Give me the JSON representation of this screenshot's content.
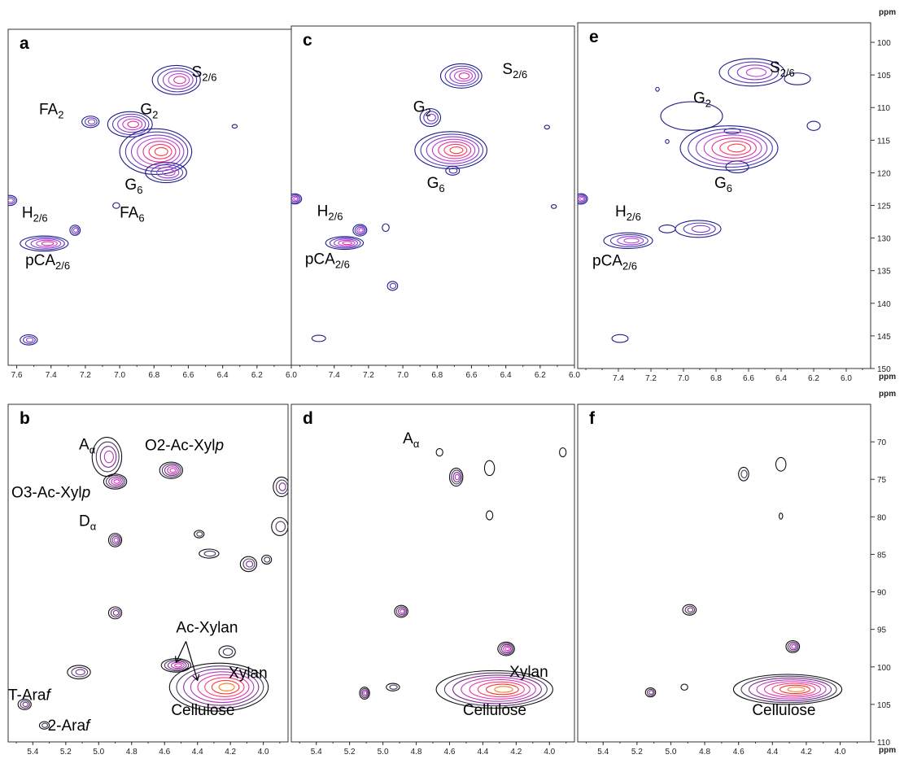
{
  "chart_data": [
    {
      "panel": "a",
      "type": "heatmap",
      "spectrum": "aromatic",
      "xlim": [
        7.65,
        6.0
      ],
      "ylim": [
        150,
        97
      ],
      "x_ticks": [
        "7.6",
        "7.4",
        "7.2",
        "7.0",
        "6.8",
        "6.6",
        "6.4",
        "6.2",
        "6.0"
      ],
      "peaks": [
        {
          "x": 6.67,
          "y": 105.0,
          "w": 0.14,
          "h": 2.3,
          "n": 5,
          "name": "S2/6"
        },
        {
          "x": 7.17,
          "y": 111.6,
          "w": 0.05,
          "h": 0.9,
          "n": 3
        },
        {
          "x": 6.94,
          "y": 112.0,
          "w": 0.13,
          "h": 2.0,
          "n": 5,
          "name": "G2"
        },
        {
          "x": 6.33,
          "y": 112.3,
          "w": 0.015,
          "h": 0.25,
          "n": 1
        },
        {
          "x": 6.79,
          "y": 116.3,
          "w": 0.21,
          "h": 3.6,
          "n": 7
        },
        {
          "x": 6.73,
          "y": 119.6,
          "w": 0.12,
          "h": 1.6,
          "n": 4,
          "name": "G6"
        },
        {
          "x": 7.64,
          "y": 124.0,
          "w": 0.04,
          "h": 0.8,
          "n": 3
        },
        {
          "x": 7.02,
          "y": 124.8,
          "w": 0.02,
          "h": 0.45,
          "n": 1,
          "name": "FA6"
        },
        {
          "x": 7.26,
          "y": 128.7,
          "w": 0.03,
          "h": 0.8,
          "n": 3
        },
        {
          "x": 7.44,
          "y": 130.8,
          "w": 0.14,
          "h": 1.2,
          "n": 5,
          "name": "pCA2/6"
        },
        {
          "x": 7.53,
          "y": 146.0,
          "w": 0.05,
          "h": 0.8,
          "n": 3
        }
      ],
      "labels": [
        {
          "text": "S",
          "sub": "2/6",
          "x": 6.58,
          "y": 104.5
        },
        {
          "text": "FA",
          "sub": "2",
          "x": 7.47,
          "y": 110.4
        },
        {
          "text": "G",
          "sub": "2",
          "x": 6.88,
          "y": 110.4
        },
        {
          "text": "G",
          "sub": "6",
          "x": 6.97,
          "y": 122.3
        },
        {
          "text": "H",
          "sub": "2/6",
          "x": 7.57,
          "y": 126.7
        },
        {
          "text": "FA",
          "sub": "6",
          "x": 7.0,
          "y": 126.7
        },
        {
          "text": "pCA",
          "sub": "2/6",
          "x": 7.55,
          "y": 134.2
        }
      ],
      "panel_label": "a"
    },
    {
      "panel": "c",
      "type": "heatmap",
      "spectrum": "aromatic",
      "xlim": [
        7.65,
        6.0
      ],
      "ylim": [
        150,
        97
      ],
      "x_ticks": [
        "7.4",
        "7.2",
        "7.0",
        "6.8",
        "6.6",
        "6.4",
        "6.2",
        "6.0"
      ],
      "peaks": [
        {
          "x": 6.66,
          "y": 104.8,
          "w": 0.12,
          "h": 1.9,
          "n": 5,
          "name": "S2/6"
        },
        {
          "x": 6.84,
          "y": 111.3,
          "w": 0.06,
          "h": 1.4,
          "n": 3
        },
        {
          "x": 6.16,
          "y": 112.8,
          "w": 0.015,
          "h": 0.3,
          "n": 1
        },
        {
          "x": 6.72,
          "y": 116.4,
          "w": 0.21,
          "h": 2.9,
          "n": 7
        },
        {
          "x": 6.71,
          "y": 119.6,
          "w": 0.04,
          "h": 0.7,
          "n": 2,
          "name": "G6"
        },
        {
          "x": 7.63,
          "y": 124.0,
          "w": 0.04,
          "h": 0.8,
          "n": 4
        },
        {
          "x": 6.12,
          "y": 125.2,
          "w": 0.015,
          "h": 0.3,
          "n": 1
        },
        {
          "x": 7.25,
          "y": 128.9,
          "w": 0.04,
          "h": 0.9,
          "n": 4
        },
        {
          "x": 7.1,
          "y": 128.5,
          "w": 0.02,
          "h": 0.6,
          "n": 1
        },
        {
          "x": 7.34,
          "y": 130.9,
          "w": 0.11,
          "h": 1.0,
          "n": 5,
          "name": "pCA2/6"
        },
        {
          "x": 7.06,
          "y": 137.6,
          "w": 0.03,
          "h": 0.7,
          "n": 2
        },
        {
          "x": 7.49,
          "y": 145.8,
          "w": 0.04,
          "h": 0.5,
          "n": 1
        }
      ],
      "labels": [
        {
          "text": "S",
          "sub": "2/6",
          "x": 6.42,
          "y": 104.5
        },
        {
          "text": "G",
          "sub": "2",
          "x": 6.94,
          "y": 110.4
        },
        {
          "text": "G",
          "sub": "6",
          "x": 6.86,
          "y": 122.3
        },
        {
          "text": "H",
          "sub": "2/6",
          "x": 7.5,
          "y": 126.7
        },
        {
          "text": "pCA",
          "sub": "2/6",
          "x": 7.57,
          "y": 134.2
        }
      ],
      "panel_label": "c"
    },
    {
      "panel": "e",
      "type": "heatmap",
      "spectrum": "aromatic",
      "xlim": [
        7.65,
        5.85
      ],
      "ylim": [
        150,
        97
      ],
      "x_ticks": [
        "7.4",
        "7.2",
        "7.0",
        "6.8",
        "6.6",
        "6.4",
        "6.2",
        "6.0"
      ],
      "y_ticks": [
        "100",
        "105",
        "110",
        "115",
        "120",
        "125",
        "130",
        "135",
        "140",
        "145",
        "150"
      ],
      "y_unit": "ppm",
      "x_unit": "ppm",
      "peaks": [
        {
          "x": 6.58,
          "y": 104.6,
          "w": 0.2,
          "h": 2.1,
          "n": 4,
          "name": "S2/6"
        },
        {
          "x": 6.3,
          "y": 105.6,
          "w": 0.08,
          "h": 0.9,
          "n": 1
        },
        {
          "x": 7.16,
          "y": 107.2,
          "w": 0.01,
          "h": 0.3,
          "n": 1
        },
        {
          "x": 6.95,
          "y": 111.3,
          "w": 0.19,
          "h": 2.2,
          "n": 1,
          "name": "G2"
        },
        {
          "x": 6.7,
          "y": 113.6,
          "w": 0.05,
          "h": 0.4,
          "n": 1
        },
        {
          "x": 6.2,
          "y": 112.8,
          "w": 0.04,
          "h": 0.7,
          "n": 1
        },
        {
          "x": 7.1,
          "y": 115.2,
          "w": 0.01,
          "h": 0.3,
          "n": 1
        },
        {
          "x": 6.72,
          "y": 116.2,
          "w": 0.3,
          "h": 3.4,
          "n": 7
        },
        {
          "x": 6.67,
          "y": 119.1,
          "w": 0.07,
          "h": 0.9,
          "n": 1,
          "name": "G6"
        },
        {
          "x": 7.63,
          "y": 124.0,
          "w": 0.04,
          "h": 0.8,
          "n": 4
        },
        {
          "x": 6.91,
          "y": 128.6,
          "w": 0.14,
          "h": 1.3,
          "n": 3
        },
        {
          "x": 7.1,
          "y": 128.6,
          "w": 0.05,
          "h": 0.6,
          "n": 1
        },
        {
          "x": 7.34,
          "y": 130.4,
          "w": 0.15,
          "h": 1.2,
          "n": 4,
          "name": "pCA2/6"
        },
        {
          "x": 7.39,
          "y": 145.4,
          "w": 0.05,
          "h": 0.6,
          "n": 1
        }
      ],
      "labels": [
        {
          "text": "S",
          "sub": "2/6",
          "x": 6.47,
          "y": 104.6
        },
        {
          "text": "G",
          "sub": "2",
          "x": 6.94,
          "y": 109.3
        },
        {
          "text": "G",
          "sub": "6",
          "x": 6.81,
          "y": 122.3
        },
        {
          "text": "H",
          "sub": "2/6",
          "x": 7.42,
          "y": 126.7
        },
        {
          "text": "pCA",
          "sub": "2/6",
          "x": 7.56,
          "y": 134.2
        }
      ],
      "panel_label": "e"
    },
    {
      "panel": "b",
      "type": "heatmap",
      "spectrum": "polysaccharide",
      "xlim": [
        5.55,
        3.85
      ],
      "ylim": [
        110,
        65
      ],
      "x_ticks": [
        "5.4",
        "5.2",
        "5.0",
        "4.8",
        "4.6",
        "4.4",
        "4.2",
        "4.0"
      ],
      "peaks": [
        {
          "x": 4.95,
          "y": 72.0,
          "w": 0.09,
          "h": 2.6,
          "n": 4,
          "name": "A-alpha"
        },
        {
          "x": 4.9,
          "y": 75.3,
          "w": 0.07,
          "h": 1.0,
          "n": 5
        },
        {
          "x": 4.56,
          "y": 73.8,
          "w": 0.07,
          "h": 1.1,
          "n": 5
        },
        {
          "x": 3.89,
          "y": 76.0,
          "w": 0.05,
          "h": 1.3,
          "n": 3
        },
        {
          "x": 3.9,
          "y": 81.3,
          "w": 0.05,
          "h": 1.2,
          "n": 2
        },
        {
          "x": 4.9,
          "y": 83.1,
          "w": 0.04,
          "h": 0.9,
          "n": 4,
          "name": "D-alpha"
        },
        {
          "x": 4.39,
          "y": 82.3,
          "w": 0.03,
          "h": 0.5,
          "n": 2
        },
        {
          "x": 4.33,
          "y": 84.9,
          "w": 0.06,
          "h": 0.6,
          "n": 2
        },
        {
          "x": 4.09,
          "y": 86.3,
          "w": 0.05,
          "h": 1.0,
          "n": 3
        },
        {
          "x": 3.98,
          "y": 85.7,
          "w": 0.03,
          "h": 0.6,
          "n": 2
        },
        {
          "x": 4.9,
          "y": 92.8,
          "w": 0.04,
          "h": 0.8,
          "n": 3
        },
        {
          "x": 4.53,
          "y": 99.8,
          "w": 0.09,
          "h": 0.9,
          "n": 5
        },
        {
          "x": 4.22,
          "y": 98.0,
          "w": 0.05,
          "h": 0.8,
          "n": 2
        },
        {
          "x": 5.12,
          "y": 100.7,
          "w": 0.07,
          "h": 0.9,
          "n": 3
        },
        {
          "x": 4.27,
          "y": 102.7,
          "w": 0.3,
          "h": 3.2,
          "n": 8,
          "name": "Cellulose"
        },
        {
          "x": 5.45,
          "y": 105.0,
          "w": 0.04,
          "h": 0.7,
          "n": 3,
          "name": "T-Araf"
        },
        {
          "x": 5.33,
          "y": 107.8,
          "w": 0.03,
          "h": 0.5,
          "n": 2,
          "name": "2-Araf"
        }
      ],
      "labels": [
        {
          "text": "A",
          "sub": "α",
          "x": 5.12,
          "y": 71.0
        },
        {
          "text": "O2-Ac-Xyl",
          "italic": "p",
          "x": 4.72,
          "y": 71.1
        },
        {
          "text": "O3-Ac-Xyl",
          "italic": "p",
          "x": 5.53,
          "y": 77.4
        },
        {
          "text": "D",
          "sub": "α",
          "x": 5.12,
          "y": 81.2
        },
        {
          "text": "Ac-Xylan",
          "x": 4.53,
          "y": 95.4
        },
        {
          "text": "Xylan",
          "x": 4.21,
          "y": 101.5
        },
        {
          "text": "T-Ara",
          "italic": "f",
          "x": 5.55,
          "y": 104.4
        },
        {
          "text": "2-Ara",
          "italic": "f",
          "x": 5.31,
          "y": 108.5
        },
        {
          "text": "Cellulose",
          "x": 4.56,
          "y": 106.4
        }
      ],
      "panel_label": "b"
    },
    {
      "panel": "d",
      "type": "heatmap",
      "spectrum": "polysaccharide",
      "xlim": [
        5.55,
        3.85
      ],
      "ylim": [
        110,
        65
      ],
      "x_ticks": [
        "5.4",
        "5.2",
        "5.0",
        "4.8",
        "4.6",
        "4.4",
        "4.2",
        "4.0"
      ],
      "peaks": [
        {
          "x": 4.56,
          "y": 74.7,
          "w": 0.04,
          "h": 1.2,
          "n": 4
        },
        {
          "x": 4.36,
          "y": 73.5,
          "w": 0.03,
          "h": 1.0,
          "n": 1
        },
        {
          "x": 4.66,
          "y": 71.4,
          "w": 0.02,
          "h": 0.5,
          "n": 1
        },
        {
          "x": 3.92,
          "y": 71.4,
          "w": 0.02,
          "h": 0.6,
          "n": 1
        },
        {
          "x": 4.36,
          "y": 79.8,
          "w": 0.02,
          "h": 0.6,
          "n": 1
        },
        {
          "x": 4.89,
          "y": 92.6,
          "w": 0.04,
          "h": 0.8,
          "n": 4
        },
        {
          "x": 4.26,
          "y": 97.6,
          "w": 0.05,
          "h": 0.9,
          "n": 5
        },
        {
          "x": 4.33,
          "y": 103.0,
          "w": 0.35,
          "h": 2.5,
          "n": 8,
          "name": "Cellulose"
        },
        {
          "x": 5.11,
          "y": 103.5,
          "w": 0.03,
          "h": 0.8,
          "n": 4
        },
        {
          "x": 4.94,
          "y": 102.7,
          "w": 0.04,
          "h": 0.5,
          "n": 2
        }
      ],
      "labels": [
        {
          "text": "A",
          "sub": "α",
          "x": 4.88,
          "y": 70.2
        },
        {
          "text": "Xylan",
          "x": 4.24,
          "y": 101.3
        },
        {
          "text": "Cellulose",
          "x": 4.52,
          "y": 106.4
        }
      ],
      "panel_label": "d"
    },
    {
      "panel": "f",
      "type": "heatmap",
      "spectrum": "polysaccharide",
      "xlim": [
        5.55,
        3.82
      ],
      "ylim": [
        110,
        65
      ],
      "x_ticks": [
        "5.4",
        "5.2",
        "5.0",
        "4.8",
        "4.6",
        "4.4",
        "4.2",
        "4.0"
      ],
      "y_ticks": [
        "70",
        "75",
        "80",
        "85",
        "90",
        "95",
        "100",
        "105",
        "110"
      ],
      "y_unit": "ppm",
      "x_unit": "ppm",
      "peaks": [
        {
          "x": 4.57,
          "y": 74.3,
          "w": 0.03,
          "h": 0.9,
          "n": 2
        },
        {
          "x": 4.35,
          "y": 73.0,
          "w": 0.03,
          "h": 0.9,
          "n": 1
        },
        {
          "x": 4.35,
          "y": 79.9,
          "w": 0.01,
          "h": 0.4,
          "n": 1
        },
        {
          "x": 4.89,
          "y": 92.4,
          "w": 0.04,
          "h": 0.7,
          "n": 3
        },
        {
          "x": 4.28,
          "y": 97.3,
          "w": 0.04,
          "h": 0.8,
          "n": 4
        },
        {
          "x": 4.31,
          "y": 103.0,
          "w": 0.32,
          "h": 2.0,
          "n": 8,
          "name": "Cellulose"
        },
        {
          "x": 5.12,
          "y": 103.4,
          "w": 0.03,
          "h": 0.6,
          "n": 3
        },
        {
          "x": 4.92,
          "y": 102.7,
          "w": 0.02,
          "h": 0.4,
          "n": 1
        }
      ],
      "labels": [
        {
          "text": "Cellulose",
          "x": 4.52,
          "y": 106.4
        }
      ],
      "panel_label": "f"
    }
  ]
}
